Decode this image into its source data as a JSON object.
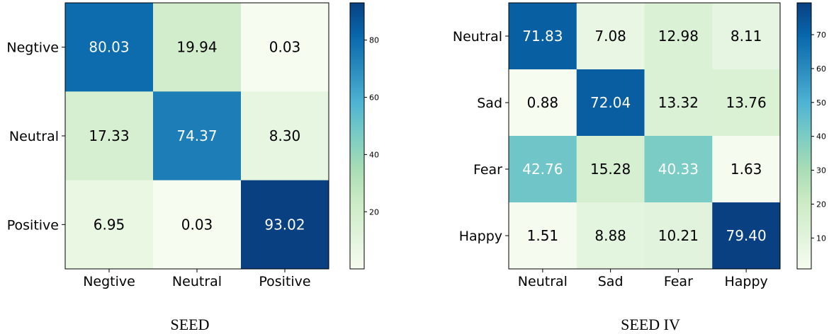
{
  "colormap": [
    "#f7fcf0",
    "#e0f3db",
    "#ccebc5",
    "#a8ddb5",
    "#7bccc4",
    "#4eb3d3",
    "#2b8cbe",
    "#0868ac",
    "#084081"
  ],
  "chart_data": [
    {
      "type": "heatmap",
      "caption": "SEED",
      "rows": [
        "Negtive",
        "Neutral",
        "Positive"
      ],
      "columns": [
        "Negtive",
        "Neutral",
        "Positive"
      ],
      "values": [
        [
          "80.03",
          "19.94",
          "0.03"
        ],
        [
          "17.33",
          "74.37",
          "8.30"
        ],
        [
          "6.95",
          "0.03",
          "93.02"
        ]
      ],
      "value_range": [
        0.03,
        93.02
      ],
      "colorbar_ticks": [
        "20",
        "40",
        "60",
        "80"
      ]
    },
    {
      "type": "heatmap",
      "caption": "SEED IV",
      "rows": [
        "Neutral",
        "Sad",
        "Fear",
        "Happy"
      ],
      "columns": [
        "Neutral",
        "Sad",
        "Fear",
        "Happy"
      ],
      "values": [
        [
          "71.83",
          "7.08",
          "12.98",
          "8.11"
        ],
        [
          "0.88",
          "72.04",
          "13.32",
          "13.76"
        ],
        [
          "42.76",
          "15.28",
          "40.33",
          "1.63"
        ],
        [
          "1.51",
          "8.88",
          "10.21",
          "79.40"
        ]
      ],
      "value_range": [
        0.88,
        79.4
      ],
      "colorbar_ticks": [
        "10",
        "20",
        "30",
        "40",
        "50",
        "60",
        "70"
      ]
    }
  ]
}
